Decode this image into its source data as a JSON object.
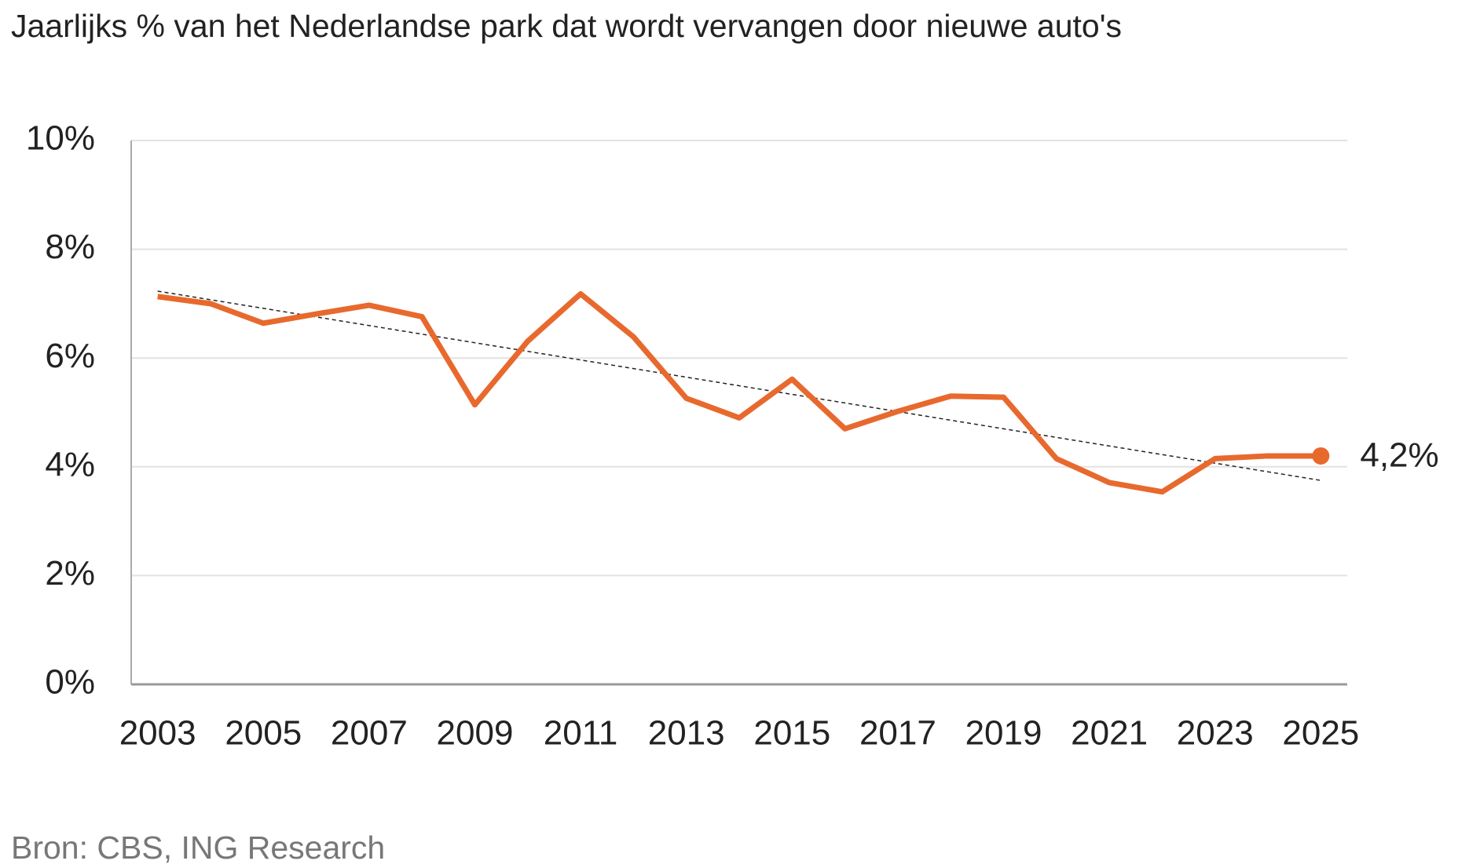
{
  "chart_data": {
    "type": "line",
    "title": "Jaarlijks % van het Nederlandse park dat wordt vervangen door nieuwe auto's",
    "source": "Bron: CBS, ING Research",
    "x": [
      2003,
      2004,
      2005,
      2006,
      2007,
      2008,
      2009,
      2010,
      2011,
      2012,
      2013,
      2014,
      2015,
      2016,
      2017,
      2018,
      2019,
      2020,
      2021,
      2022,
      2023,
      2024,
      2025
    ],
    "series": [
      {
        "color": "#e8692d",
        "values": [
          7.13,
          7.0,
          6.64,
          6.81,
          6.97,
          6.76,
          5.14,
          6.31,
          7.18,
          6.39,
          5.26,
          4.9,
          5.61,
          4.7,
          5.02,
          5.3,
          5.28,
          4.15,
          3.71,
          3.54,
          4.15,
          4.2,
          4.2
        ],
        "value_labels": [
          null,
          null,
          null,
          null,
          null,
          null,
          null,
          null,
          null,
          null,
          null,
          null,
          null,
          null,
          null,
          null,
          null,
          null,
          null,
          null,
          null,
          null,
          "4,2%"
        ]
      }
    ],
    "trendline": {
      "x": [
        2003,
        2025
      ],
      "values": [
        7.23,
        3.75
      ],
      "color": "#222222",
      "style": "dashed"
    },
    "xlim": [
      2002.5,
      2025.5
    ],
    "xticks": [
      2003,
      2005,
      2007,
      2009,
      2011,
      2013,
      2015,
      2017,
      2019,
      2021,
      2023,
      2025
    ],
    "ylim": [
      0,
      10
    ],
    "yticks": [
      {
        "value": 0,
        "label": "0%"
      },
      {
        "value": 2,
        "label": "2%"
      },
      {
        "value": 4,
        "label": "4%"
      },
      {
        "value": 6,
        "label": "6%"
      },
      {
        "value": 8,
        "label": "8%"
      },
      {
        "value": 10,
        "label": "10%"
      }
    ],
    "grid": true
  }
}
